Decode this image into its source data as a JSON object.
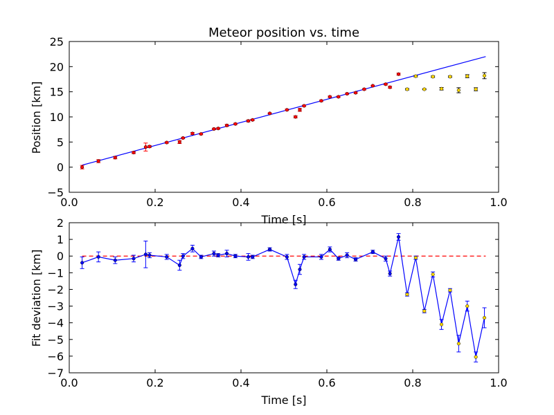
{
  "chart_data": [
    {
      "type": "scatter",
      "title": "Meteor position vs. time",
      "xlabel": "Time [s]",
      "ylabel": "Position [km]",
      "xlim": [
        0.0,
        1.0
      ],
      "ylim": [
        -5,
        25
      ],
      "xticks": [
        "0.0",
        "0.2",
        "0.4",
        "0.6",
        "0.8",
        "1.0"
      ],
      "yticks": [
        "−5",
        "0",
        "5",
        "10",
        "15",
        "20",
        "25"
      ],
      "grid": false,
      "colors": {
        "fit_line": "#0000ff",
        "used_points": "#ff0000",
        "rejected_points": "#ffd700",
        "errorbar": "#000000"
      },
      "fit_line": {
        "x": [
          0.03,
          0.97
        ],
        "y": [
          0.4,
          22.0
        ]
      },
      "series": [
        {
          "x": [
            0.03,
            0.068,
            0.107,
            0.15,
            0.178,
            0.187,
            0.227,
            0.257,
            0.265,
            0.287,
            0.307,
            0.337,
            0.347,
            0.367,
            0.387,
            0.417,
            0.427,
            0.467,
            0.507,
            0.527,
            0.537,
            0.547,
            0.587,
            0.607,
            0.627,
            0.647,
            0.667,
            0.687,
            0.707,
            0.737,
            0.747,
            0.767
          ],
          "y": [
            0.0,
            1.2,
            1.9,
            2.9,
            4.0,
            4.1,
            4.9,
            5.0,
            5.8,
            6.7,
            6.6,
            7.6,
            7.7,
            8.3,
            8.6,
            9.2,
            9.4,
            10.7,
            11.4,
            10.0,
            11.4,
            12.2,
            13.2,
            14.0,
            14.0,
            14.6,
            14.8,
            15.5,
            16.2,
            16.5,
            15.9,
            18.5
          ],
          "yerr": [
            0.35,
            0.3,
            0.25,
            0.2,
            0.8,
            0.2,
            0.15,
            0.3,
            0.15,
            0.2,
            0.15,
            0.15,
            0.15,
            0.2,
            0.15,
            0.2,
            0.15,
            0.1,
            0.15,
            0.2,
            0.3,
            0.15,
            0.15,
            0.15,
            0.15,
            0.15,
            0.15,
            0.15,
            0.1,
            0.15,
            0.2,
            0.2
          ]
        },
        {
          "x": [
            0.787,
            0.807,
            0.827,
            0.847,
            0.867,
            0.887,
            0.907,
            0.927,
            0.947,
            0.967
          ],
          "y": [
            15.5,
            18.1,
            15.5,
            18.0,
            15.6,
            18.0,
            15.3,
            18.1,
            15.5,
            18.2
          ],
          "yerr": [
            0.15,
            0.15,
            0.1,
            0.15,
            0.25,
            0.15,
            0.5,
            0.3,
            0.3,
            0.6
          ]
        }
      ]
    },
    {
      "type": "line",
      "title": "",
      "xlabel": "Time [s]",
      "ylabel": "Fit deviation [km]",
      "xlim": [
        0.0,
        1.0
      ],
      "ylim": [
        -7,
        2
      ],
      "xticks": [
        "0.0",
        "0.2",
        "0.4",
        "0.6",
        "0.8",
        "1.0"
      ],
      "yticks": [
        "−7",
        "−6",
        "−5",
        "−4",
        "−3",
        "−2",
        "−1",
        "0",
        "1",
        "2"
      ],
      "grid": false,
      "colors": {
        "line": "#0000ff",
        "zero_line": "#ff0000",
        "rejected_points": "#ffd700"
      },
      "zero_line": {
        "x": [
          0.03,
          0.97
        ],
        "y": [
          0,
          0
        ]
      },
      "x": [
        0.03,
        0.068,
        0.107,
        0.15,
        0.178,
        0.187,
        0.227,
        0.257,
        0.265,
        0.287,
        0.307,
        0.337,
        0.347,
        0.367,
        0.387,
        0.417,
        0.427,
        0.467,
        0.507,
        0.527,
        0.537,
        0.547,
        0.587,
        0.607,
        0.627,
        0.647,
        0.667,
        0.707,
        0.737,
        0.747,
        0.767,
        0.787,
        0.807,
        0.827,
        0.847,
        0.867,
        0.887,
        0.907,
        0.927,
        0.947,
        0.967
      ],
      "y": [
        -0.4,
        -0.05,
        -0.25,
        -0.15,
        0.1,
        0.05,
        -0.05,
        -0.55,
        0.0,
        0.45,
        -0.05,
        0.15,
        0.05,
        0.15,
        0.0,
        -0.05,
        -0.05,
        0.4,
        -0.05,
        -1.7,
        -0.8,
        -0.05,
        -0.05,
        0.4,
        -0.15,
        0.05,
        -0.2,
        0.25,
        -0.15,
        -1.05,
        1.15,
        -2.3,
        -0.1,
        -3.3,
        -1.1,
        -4.1,
        -2.05,
        -5.25,
        -3.0,
        -6.05,
        -3.7
      ],
      "yerr": [
        0.35,
        0.3,
        0.2,
        0.2,
        0.8,
        0.15,
        0.15,
        0.3,
        0.15,
        0.2,
        0.1,
        0.15,
        0.1,
        0.2,
        0.1,
        0.2,
        0.1,
        0.1,
        0.15,
        0.25,
        0.3,
        0.15,
        0.15,
        0.15,
        0.1,
        0.15,
        0.1,
        0.1,
        0.15,
        0.15,
        0.2,
        0.1,
        0.1,
        0.1,
        0.15,
        0.3,
        0.1,
        0.5,
        0.3,
        0.3,
        0.6
      ],
      "rejected_from_index": 31
    }
  ]
}
